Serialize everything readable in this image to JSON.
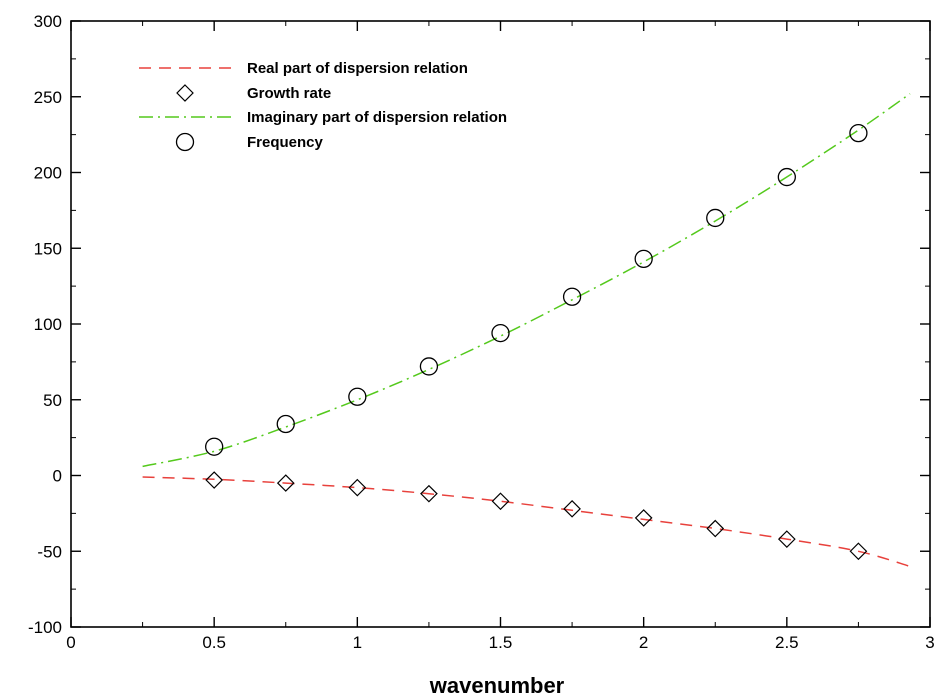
{
  "chart_data": {
    "type": "line",
    "xlabel": "wavenumber",
    "ylabel": "",
    "xlim": [
      0,
      3
    ],
    "ylim": [
      -100,
      300
    ],
    "xticks": [
      0,
      0.5,
      1,
      1.5,
      2,
      2.5,
      3
    ],
    "yticks": [
      -100,
      -50,
      0,
      50,
      100,
      150,
      200,
      250,
      300
    ],
    "xtick_labels": [
      "0",
      "0.5",
      "1",
      "1.5",
      "2",
      "2.5",
      "3"
    ],
    "ytick_labels": [
      "-100",
      "-50",
      "0",
      "50",
      "100",
      "150",
      "200",
      "250",
      "300"
    ],
    "legend_position": "top-left",
    "grid": false,
    "series": [
      {
        "name": "Real part of dispersion relation",
        "style": "dashed-line",
        "color": "#e8413c",
        "x": [
          0.25,
          0.5,
          0.75,
          1.0,
          1.25,
          1.5,
          1.75,
          2.0,
          2.25,
          2.5,
          2.75,
          2.93
        ],
        "y": [
          -1,
          -2.5,
          -5,
          -8,
          -12,
          -17,
          -23,
          -29,
          -35,
          -42,
          -50,
          -60
        ]
      },
      {
        "name": "Growth rate",
        "style": "diamond-markers",
        "color": "#000000",
        "x": [
          0.5,
          0.75,
          1.0,
          1.25,
          1.5,
          1.75,
          2.0,
          2.25,
          2.5,
          2.75
        ],
        "y": [
          -3,
          -5,
          -8,
          -12,
          -17,
          -22,
          -28,
          -35,
          -42,
          -50
        ]
      },
      {
        "name": "Imaginary part of dispersion relation",
        "style": "dash-dot-line",
        "color": "#54c91c",
        "x": [
          0.25,
          0.5,
          0.75,
          1.0,
          1.25,
          1.5,
          1.75,
          2.0,
          2.25,
          2.5,
          2.75,
          2.93
        ],
        "y": [
          6,
          16,
          32,
          50,
          70,
          92,
          116,
          141,
          168,
          197,
          228,
          252
        ]
      },
      {
        "name": "Frequency",
        "style": "circle-markers",
        "color": "#000000",
        "x": [
          0.5,
          0.75,
          1.0,
          1.25,
          1.5,
          1.75,
          2.0,
          2.25,
          2.5,
          2.75
        ],
        "y": [
          19,
          34,
          52,
          72,
          94,
          118,
          143,
          170,
          197,
          226
        ]
      }
    ]
  }
}
